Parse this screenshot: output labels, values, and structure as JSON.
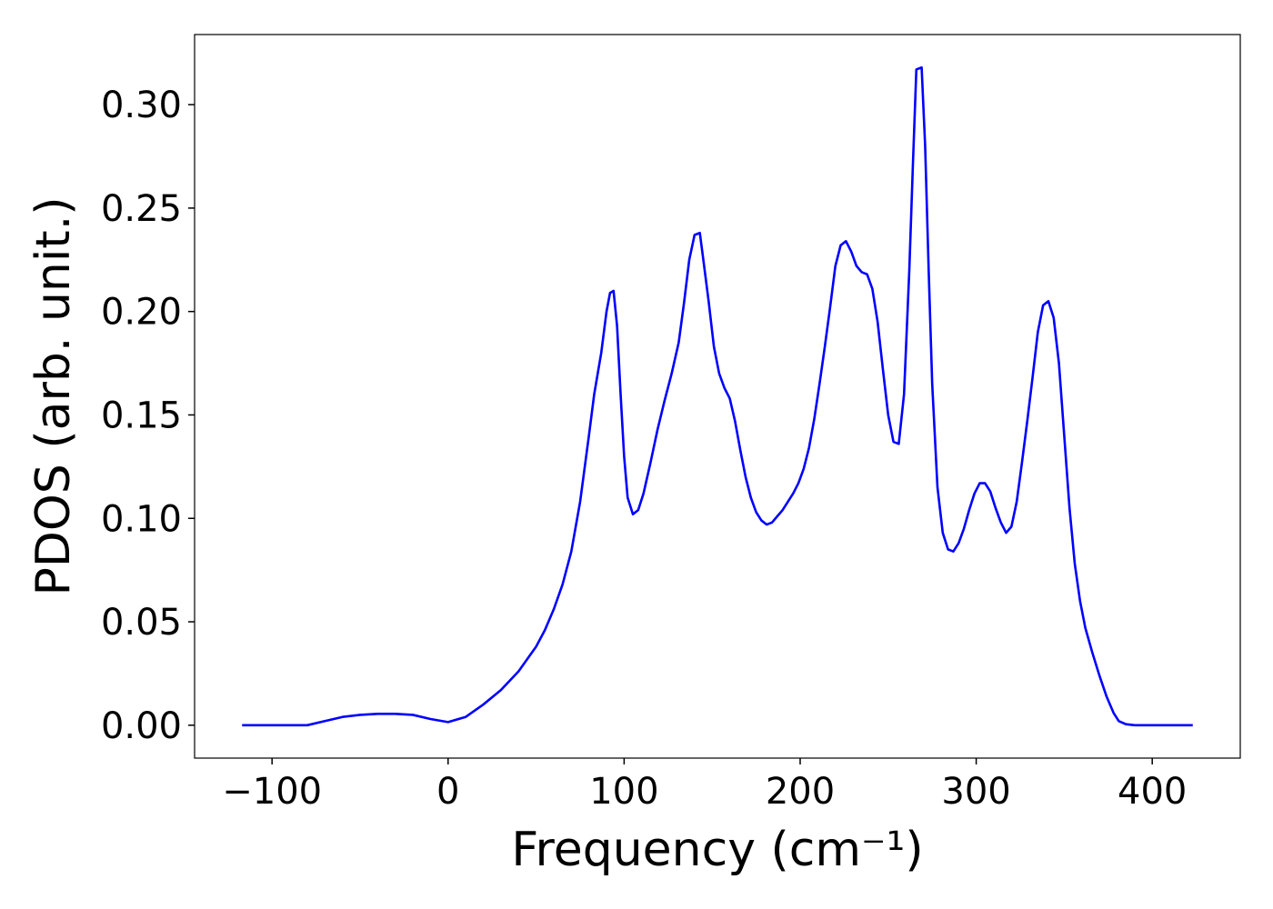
{
  "chart_data": {
    "type": "line",
    "xlabel": "Frequency (cm⁻¹)",
    "ylabel": "PDOS (arb. unit.)",
    "color": "#0000ff",
    "xlim": [
      -144,
      450
    ],
    "ylim": [
      -0.0159,
      0.3339
    ],
    "xticks": [
      {
        "value": -100,
        "label": "−100"
      },
      0,
      100,
      200,
      300,
      400
    ],
    "yticks": [
      {
        "value": 0,
        "label": "0.00"
      },
      {
        "value": 0.05,
        "label": "0.05"
      },
      {
        "value": 0.1,
        "label": "0.10"
      },
      {
        "value": 0.15,
        "label": "0.15"
      },
      {
        "value": 0.2,
        "label": "0.20"
      },
      {
        "value": 0.25,
        "label": "0.25"
      },
      {
        "value": 0.3,
        "label": "0.30"
      }
    ],
    "x": [
      -117,
      -80,
      -70,
      -60,
      -50,
      -40,
      -30,
      -20,
      -10,
      0,
      10,
      20,
      30,
      40,
      50,
      55,
      60,
      65,
      70,
      75,
      80,
      83,
      87,
      90,
      92,
      94,
      96,
      98,
      100,
      102,
      105,
      108,
      111,
      115,
      119,
      123,
      127,
      131,
      134,
      137,
      140,
      143,
      145,
      148,
      151,
      154,
      157,
      160,
      163,
      166,
      169,
      172,
      175,
      178,
      181,
      184,
      187,
      190,
      193,
      196,
      199,
      202,
      205,
      208,
      211,
      214,
      217,
      220,
      223,
      226,
      229,
      232,
      235,
      238,
      241,
      244,
      247,
      250,
      253,
      256,
      259,
      262,
      264,
      266,
      269,
      271,
      273,
      275,
      278,
      281,
      284,
      287,
      290,
      293,
      296,
      299,
      302,
      305,
      308,
      311,
      314,
      317,
      320,
      323,
      326,
      329,
      332,
      335,
      338,
      341,
      344,
      347,
      350,
      353,
      356,
      359,
      362,
      366,
      370,
      374,
      378,
      381,
      385,
      390,
      400,
      423
    ],
    "values": [
      0,
      0,
      0.002,
      0.004,
      0.005,
      0.0055,
      0.0055,
      0.005,
      0.003,
      0.0015,
      0.004,
      0.01,
      0.017,
      0.026,
      0.038,
      0.046,
      0.056,
      0.068,
      0.084,
      0.108,
      0.14,
      0.16,
      0.18,
      0.2,
      0.209,
      0.21,
      0.193,
      0.16,
      0.13,
      0.11,
      0.102,
      0.104,
      0.112,
      0.127,
      0.143,
      0.157,
      0.17,
      0.185,
      0.204,
      0.225,
      0.237,
      0.238,
      0.225,
      0.205,
      0.183,
      0.17,
      0.163,
      0.158,
      0.147,
      0.133,
      0.12,
      0.11,
      0.103,
      0.099,
      0.097,
      0.098,
      0.101,
      0.104,
      0.108,
      0.112,
      0.117,
      0.124,
      0.134,
      0.148,
      0.165,
      0.183,
      0.202,
      0.222,
      0.232,
      0.234,
      0.229,
      0.222,
      0.219,
      0.218,
      0.211,
      0.195,
      0.172,
      0.15,
      0.137,
      0.136,
      0.16,
      0.22,
      0.27,
      0.317,
      0.318,
      0.28,
      0.22,
      0.165,
      0.115,
      0.093,
      0.085,
      0.084,
      0.088,
      0.095,
      0.104,
      0.112,
      0.117,
      0.117,
      0.113,
      0.105,
      0.098,
      0.093,
      0.096,
      0.108,
      0.127,
      0.147,
      0.168,
      0.19,
      0.203,
      0.205,
      0.197,
      0.175,
      0.14,
      0.105,
      0.078,
      0.06,
      0.047,
      0.035,
      0.024,
      0.014,
      0.006,
      0.002,
      0.0005,
      0,
      0,
      0
    ]
  }
}
